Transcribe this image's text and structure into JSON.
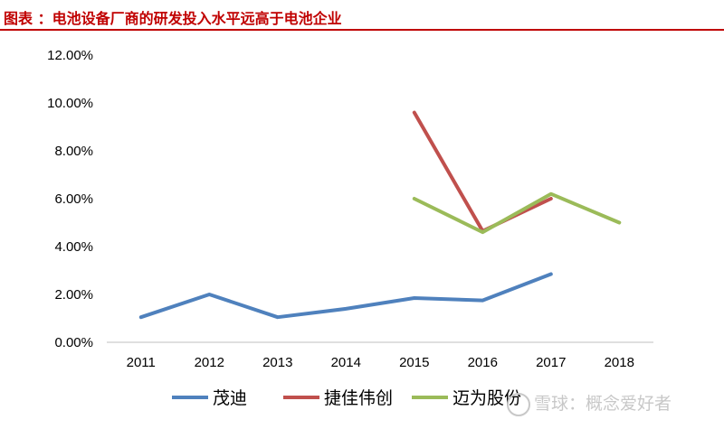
{
  "header": {
    "title": "图表 ：电池设备厂商的研发投入水平远高于电池企业"
  },
  "watermark": {
    "text": "雪球：概念爱好者"
  },
  "chart_data": {
    "type": "line",
    "title": "",
    "xlabel": "",
    "ylabel": "",
    "categories": [
      "2011",
      "2012",
      "2013",
      "2014",
      "2015",
      "2016",
      "2017",
      "2018"
    ],
    "ylim": [
      0,
      12
    ],
    "yticks": [
      "0.00%",
      "2.00%",
      "4.00%",
      "6.00%",
      "8.00%",
      "10.00%",
      "12.00%"
    ],
    "grid": false,
    "legend_position": "bottom",
    "series": [
      {
        "name": "茂迪",
        "color": "#4f81bd",
        "values": [
          1.05,
          2.0,
          1.05,
          1.4,
          1.85,
          1.75,
          2.85,
          null
        ]
      },
      {
        "name": "捷佳伟创",
        "color": "#c0504d",
        "values": [
          null,
          null,
          null,
          null,
          9.6,
          4.65,
          6.0,
          null
        ]
      },
      {
        "name": "迈为股份",
        "color": "#9bbb59",
        "values": [
          null,
          null,
          null,
          null,
          6.0,
          4.6,
          6.2,
          5.0
        ]
      }
    ]
  }
}
